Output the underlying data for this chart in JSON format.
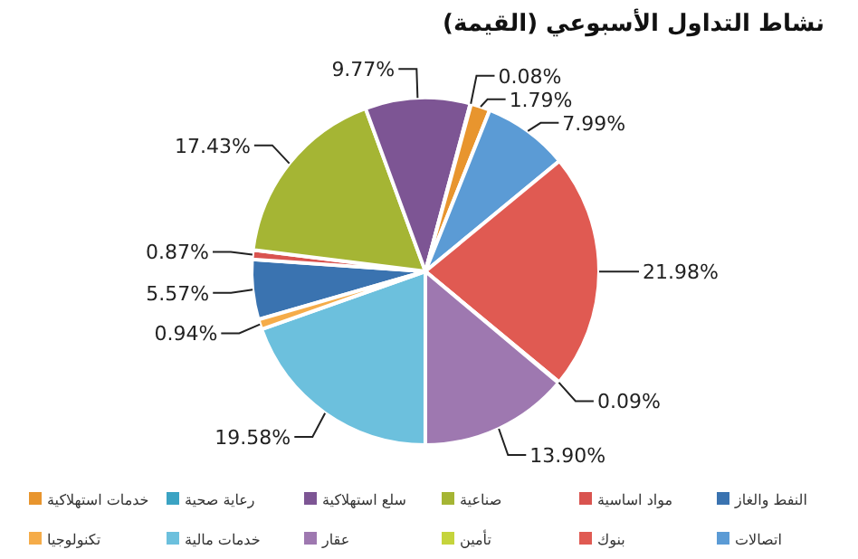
{
  "chart_data": {
    "type": "pie",
    "title": "نشاط التداول الأسبوعي (القيمة)",
    "categories": [
      "النفط والغاز",
      "مواد اساسية",
      "صناعية",
      "سلع استهلاكية",
      "رعاية صحية",
      "خدمات استهلاكية",
      "اتصالات",
      "بنوك",
      "تأمين",
      "عقار",
      "خدمات مالية",
      "تكنولوجيا"
    ],
    "values": [
      5.57,
      0.87,
      17.43,
      9.77,
      0.08,
      1.79,
      7.99,
      21.98,
      0.09,
      13.9,
      19.58,
      0.94
    ],
    "value_labels": [
      "5.57%",
      "0.87%",
      "17.43%",
      "9.77%",
      "0.08%",
      "1.79%",
      "7.99%",
      "21.98%",
      "0.09%",
      "13.90%",
      "19.58%",
      "0.94%"
    ],
    "colors": [
      "#3a73b0",
      "#d9534f",
      "#a5b534",
      "#7d5594",
      "#3ba3c3",
      "#e8952e",
      "#5b9bd5",
      "#e05a52",
      "#c5d43c",
      "#9e78b0",
      "#6cc0dd",
      "#f5ac49"
    ],
    "legend": "bottom"
  }
}
